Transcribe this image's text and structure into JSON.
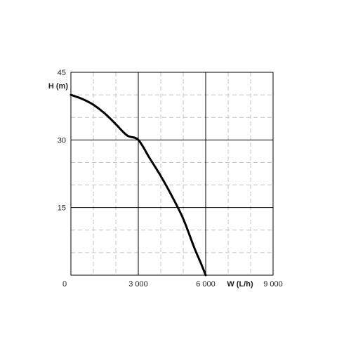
{
  "chart_data": {
    "type": "line",
    "xlabel": "W (L/h)",
    "ylabel": "H (m)",
    "xlim": [
      0,
      9000
    ],
    "ylim": [
      0,
      45
    ],
    "x_ticks": [
      0,
      3000,
      6000,
      9000
    ],
    "x_tick_labels": [
      "0",
      "3 000",
      "6 000",
      "9 000"
    ],
    "y_ticks": [
      15,
      30,
      45
    ],
    "y_tick_labels": [
      "15",
      "30",
      "45"
    ],
    "grid": "major solid, minor dashed",
    "series": [
      {
        "color": "#000000",
        "x": [
          0,
          500,
          1000,
          1500,
          2000,
          2500,
          3000,
          3500,
          4000,
          4500,
          5000,
          5500,
          5800,
          6000
        ],
        "y": [
          40,
          39.1,
          37.8,
          35.9,
          33.5,
          31.0,
          30.0,
          26.0,
          22.0,
          17.5,
          12.5,
          6.0,
          2.5,
          0
        ]
      }
    ]
  }
}
